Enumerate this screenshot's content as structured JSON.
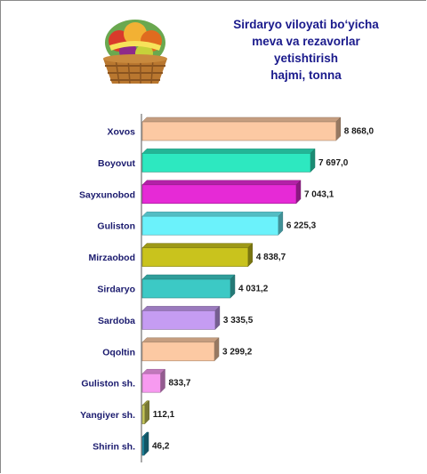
{
  "chart_data": {
    "type": "bar",
    "orientation": "horizontal",
    "title": "Sirdaryo viloyati bo‘yicha\nmeva va rezavorlar\nyetishtirish\nhajmi, tonna",
    "categories": [
      "Xovos",
      "Boyovut",
      "Sayxunobod",
      "Guliston",
      "Mirzaobod",
      "Sirdaryo",
      "Sardoba",
      "Oqoltin",
      "Guliston sh.",
      "Yangiyer sh.",
      "Shirin sh."
    ],
    "values": [
      8868.0,
      7697.0,
      7043.1,
      6225.3,
      4838.7,
      4031.2,
      3335.5,
      3299.2,
      833.7,
      112.1,
      46.2
    ],
    "value_labels": [
      "8 868,0",
      "7 697,0",
      "7 043,1",
      "6 225,3",
      "4 838,7",
      "4 031,2",
      "3 335,5",
      "3 299,2",
      "833,7",
      "112,1",
      "46,2"
    ],
    "colors": [
      "#fcc9a3",
      "#2de8c0",
      "#e62ad6",
      "#6bf2fb",
      "#c9c31d",
      "#3cc9c5",
      "#c59cf2",
      "#fcc9a3",
      "#f79af0",
      "#c8c85a",
      "#1f8ea8"
    ],
    "xlim": [
      0,
      9000
    ],
    "grid": false,
    "legend": "none",
    "decorative_image": "fruit-basket-icon"
  }
}
